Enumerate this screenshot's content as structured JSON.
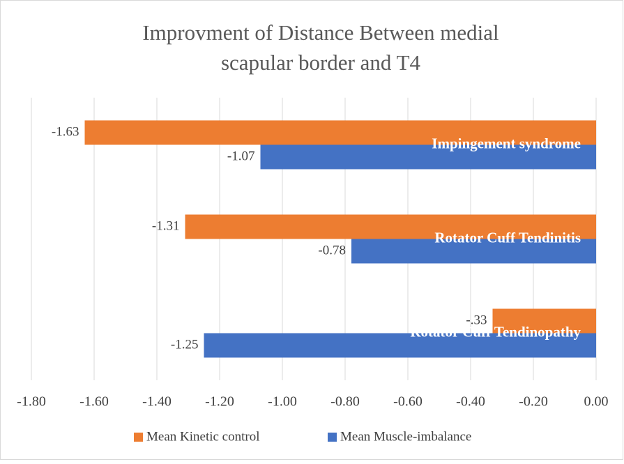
{
  "chart_data": {
    "type": "bar",
    "orientation": "horizontal",
    "title": [
      "Improvment of Distance Between medial",
      "scapular border and T4"
    ],
    "categories": [
      "Impingement syndrome",
      "Rotator Cuff Tendinitis",
      "Rotator Cuff Tendinopathy"
    ],
    "series": [
      {
        "name": "Mean Kinetic control",
        "color": "#ed7d31",
        "values": [
          -1.63,
          -1.31,
          -0.33
        ],
        "value_labels": [
          "-1.63",
          "-1.31",
          "-.33"
        ]
      },
      {
        "name": "Mean Muscle-imbalance",
        "color": "#4472c4",
        "values": [
          -1.07,
          -0.78,
          -1.25
        ],
        "value_labels": [
          "-1.07",
          "-0.78",
          "-1.25"
        ]
      }
    ],
    "xlim": [
      -1.8,
      0
    ],
    "xticks": [
      {
        "value": -1.8,
        "label": "-1.80"
      },
      {
        "value": -1.6,
        "label": "-1.60"
      },
      {
        "value": -1.4,
        "label": "-1.40"
      },
      {
        "value": -1.2,
        "label": "-1.20"
      },
      {
        "value": -1.0,
        "label": "-1.00"
      },
      {
        "value": -0.8,
        "label": "-0.80"
      },
      {
        "value": -0.6,
        "label": "-0.60"
      },
      {
        "value": -0.4,
        "label": "-0.40"
      },
      {
        "value": -0.2,
        "label": "-0.20"
      },
      {
        "value": 0,
        "label": "0.00"
      }
    ],
    "grid": true,
    "legend": "bottom"
  }
}
